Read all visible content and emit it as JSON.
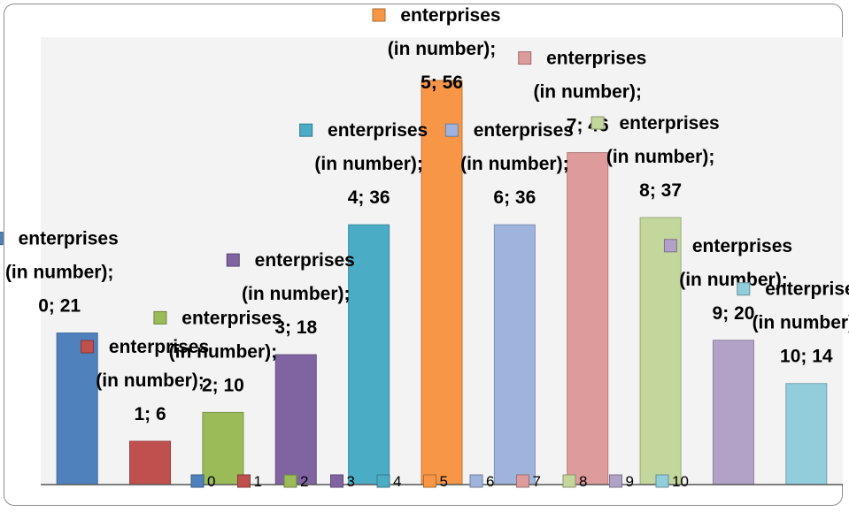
{
  "chart_data": {
    "type": "bar",
    "series_name": "enterprises (in number)",
    "categories": [
      "0",
      "1",
      "2",
      "3",
      "4",
      "5",
      "6",
      "7",
      "8",
      "9",
      "10"
    ],
    "values": [
      21,
      6,
      10,
      18,
      36,
      56,
      36,
      46,
      37,
      20,
      14
    ],
    "colors": [
      "#4f81bd",
      "#c0504d",
      "#9bbb59",
      "#8064a2",
      "#4bacc6",
      "#f79646",
      "#9eb4dd",
      "#de9b9b",
      "#c3d69b",
      "#b2a2c7",
      "#92cddc"
    ],
    "ylim": [
      0,
      62
    ],
    "grid": false,
    "legend_position": "bottom",
    "data_labels": [
      "enterprises (in number); 0; 21",
      "enterprises (in number); 1; 6",
      "enterprises (in number); 2; 10",
      "enterprises (in number); 3; 18",
      "enterprises (in number); 4; 36",
      "enterprises (in number); 5; 56",
      "enterprises (in number); 6; 36",
      "enterprises (in number); 7; 46",
      "enterprises (in number); 8; 37",
      "enterprises (in number); 9; 20",
      "enterprises (in number); 10; 14"
    ]
  }
}
